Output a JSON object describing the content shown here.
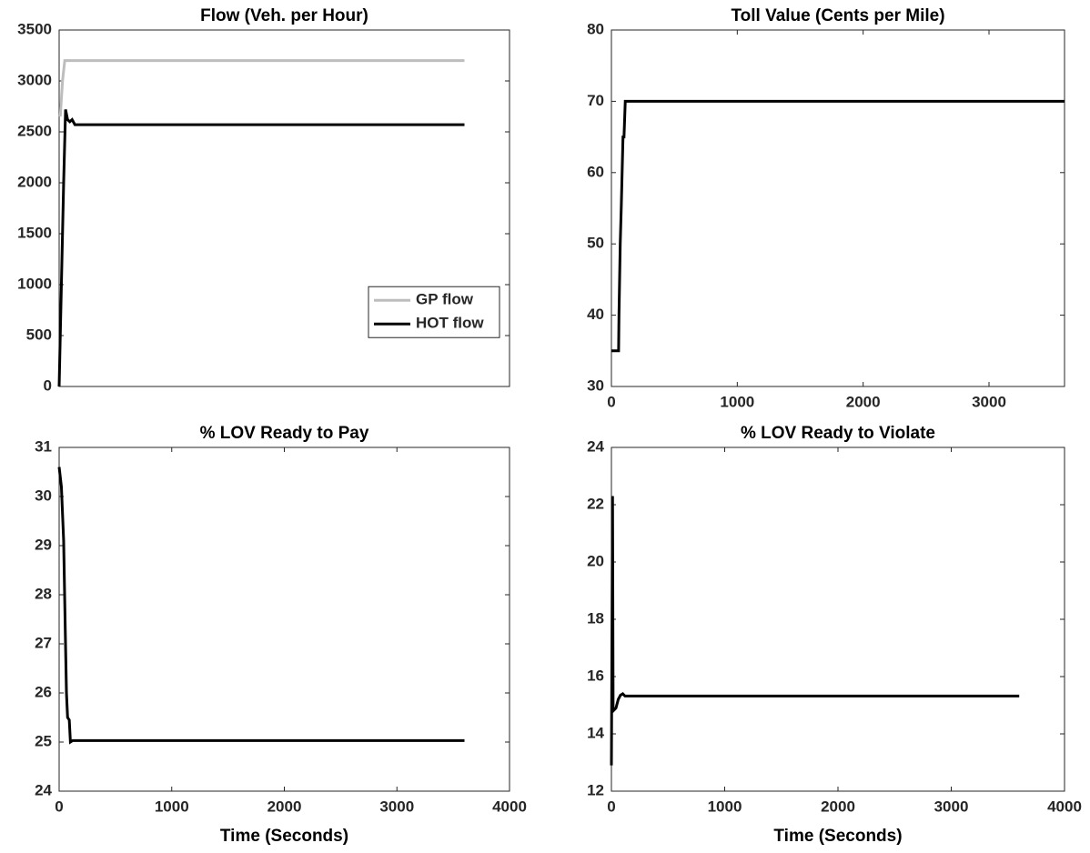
{
  "chart_data": [
    {
      "type": "line",
      "title": "Flow (Veh. per Hour)",
      "xlim": [
        0,
        4000
      ],
      "ylim": [
        0,
        3500
      ],
      "yticks": [
        0,
        500,
        1000,
        1500,
        2000,
        2500,
        3000,
        3500
      ],
      "legend": "right",
      "series": [
        {
          "name": "GP flow",
          "color": "#bdbdbd",
          "x": [
            10,
            30,
            50,
            3600
          ],
          "values": [
            2650,
            3000,
            3200,
            3200
          ]
        },
        {
          "name": "HOT flow",
          "color": "#000000",
          "x": [
            0,
            20,
            40,
            57,
            75,
            95,
            115,
            140,
            3600
          ],
          "values": [
            0,
            1000,
            2000,
            2720,
            2620,
            2600,
            2620,
            2570,
            2570
          ]
        }
      ]
    },
    {
      "type": "line",
      "title": "Toll Value (Cents per Mile)",
      "xlim": [
        0,
        3600
      ],
      "ylim": [
        30,
        80
      ],
      "xticks": [
        0,
        1000,
        2000,
        3000
      ],
      "yticks": [
        30,
        40,
        50,
        60,
        70,
        80
      ],
      "color": "#000000",
      "x": [
        0,
        57,
        60,
        70,
        78,
        85,
        92,
        100,
        110,
        114,
        3600
      ],
      "values": [
        35,
        35,
        40,
        50,
        55,
        60,
        65,
        65,
        70,
        70,
        70
      ]
    },
    {
      "type": "line",
      "title": "% LOV Ready to Pay",
      "xlabel": "Time (Seconds)",
      "xlim": [
        0,
        4000
      ],
      "ylim": [
        24,
        31
      ],
      "xticks": [
        0,
        1000,
        2000,
        3000,
        4000
      ],
      "yticks": [
        24,
        25,
        26,
        27,
        28,
        29,
        30,
        31
      ],
      "color": "#000000",
      "x": [
        0,
        20,
        40,
        55,
        65,
        75,
        90,
        100,
        120,
        3600
      ],
      "values": [
        30.6,
        30.2,
        29.1,
        27.2,
        26.0,
        25.5,
        25.45,
        25.0,
        25.03,
        25.03
      ]
    },
    {
      "type": "line",
      "title": "% LOV Ready to Violate",
      "xlabel": "Time (Seconds)",
      "xlim": [
        0,
        4000
      ],
      "ylim": [
        12,
        24
      ],
      "xticks": [
        0,
        1000,
        2000,
        3000,
        4000
      ],
      "yticks": [
        12,
        14,
        16,
        18,
        20,
        22,
        24
      ],
      "color": "#000000",
      "x": [
        0,
        10,
        15,
        40,
        60,
        80,
        100,
        120,
        3600
      ],
      "values": [
        12.9,
        22.3,
        14.8,
        14.9,
        15.2,
        15.35,
        15.4,
        15.32,
        15.32
      ]
    }
  ]
}
